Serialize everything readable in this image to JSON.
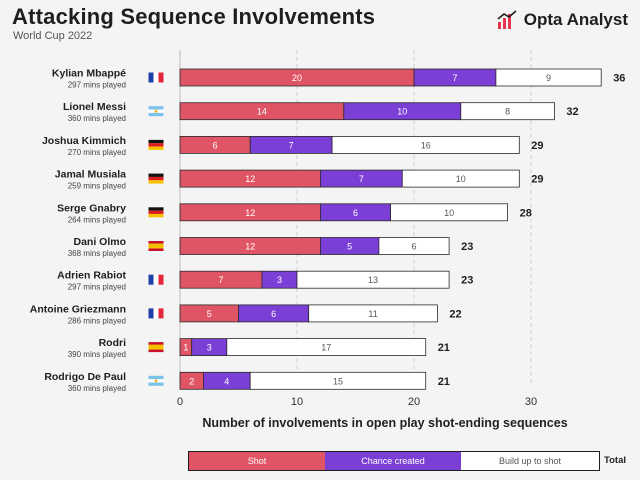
{
  "header": {
    "title": "Attacking Sequence Involvements",
    "subtitle": "World Cup 2022",
    "brand": "Opta Analyst"
  },
  "legend": {
    "shot": "Shot",
    "chance": "Chance created",
    "build": "Build up to shot",
    "total": "Total"
  },
  "colors": {
    "shot": "#e05565",
    "chance": "#7b3fd6",
    "build": "#ffffff",
    "brand_accent": "#e9344f"
  },
  "chart_data": {
    "type": "bar",
    "stacked": true,
    "orientation": "horizontal",
    "title": "Attacking Sequence Involvements",
    "subtitle": "World Cup 2022",
    "xlabel": "Number of involvements in open play shot-ending sequences",
    "xlim": [
      0,
      36
    ],
    "xticks": [
      0,
      10,
      20,
      30
    ],
    "categories": [
      "Kylian Mbappé",
      "Lionel Messi",
      "Joshua Kimmich",
      "Jamal Musiala",
      "Serge Gnabry",
      "Dani Olmo",
      "Adrien Rabiot",
      "Antoine Griezmann",
      "Rodri",
      "Rodrigo De Paul"
    ],
    "minutes": [
      "297 mins played",
      "360 mins played",
      "270 mins played",
      "259 mins played",
      "264 mins played",
      "368 mins played",
      "297 mins played",
      "286 mins played",
      "390 mins played",
      "360 mins played"
    ],
    "flags": [
      "france",
      "argentina",
      "germany",
      "germany",
      "germany",
      "spain",
      "france",
      "france",
      "spain",
      "argentina"
    ],
    "series": [
      {
        "name": "Shot",
        "values": [
          20,
          14,
          6,
          12,
          12,
          12,
          7,
          5,
          1,
          2
        ]
      },
      {
        "name": "Chance created",
        "values": [
          7,
          10,
          7,
          7,
          6,
          5,
          3,
          6,
          3,
          4
        ]
      },
      {
        "name": "Build up to shot",
        "values": [
          9,
          8,
          16,
          10,
          10,
          6,
          13,
          11,
          17,
          15
        ]
      }
    ],
    "totals": [
      36,
      32,
      29,
      29,
      28,
      23,
      23,
      22,
      21,
      21
    ]
  }
}
